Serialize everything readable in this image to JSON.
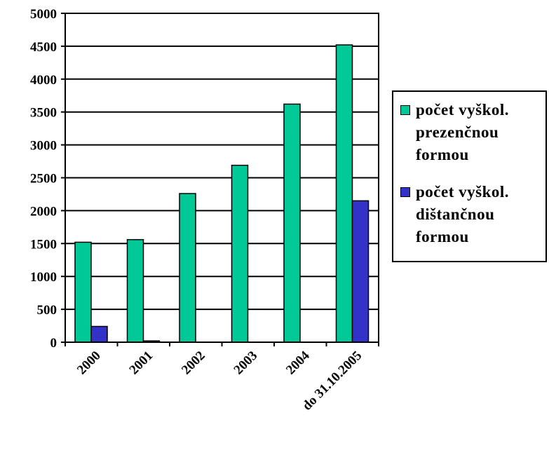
{
  "chart_data": {
    "type": "bar",
    "categories": [
      "2000",
      "2001",
      "2002",
      "2003",
      "2004",
      "do 31.10.2005"
    ],
    "series": [
      {
        "name": "počet vyškol. prezenčnou formou",
        "color": "#00c896",
        "values": [
          1520,
          1560,
          2260,
          2690,
          3620,
          4520
        ]
      },
      {
        "name": "počet vyškol. dištančnou formou",
        "color": "#3232c8",
        "values": [
          240,
          20,
          0,
          0,
          0,
          2150
        ]
      }
    ],
    "ylim": [
      0,
      5000
    ],
    "yticks": [
      0,
      500,
      1000,
      1500,
      2000,
      2500,
      3000,
      3500,
      4000,
      4500,
      5000
    ],
    "grid": true,
    "legend": "right"
  }
}
